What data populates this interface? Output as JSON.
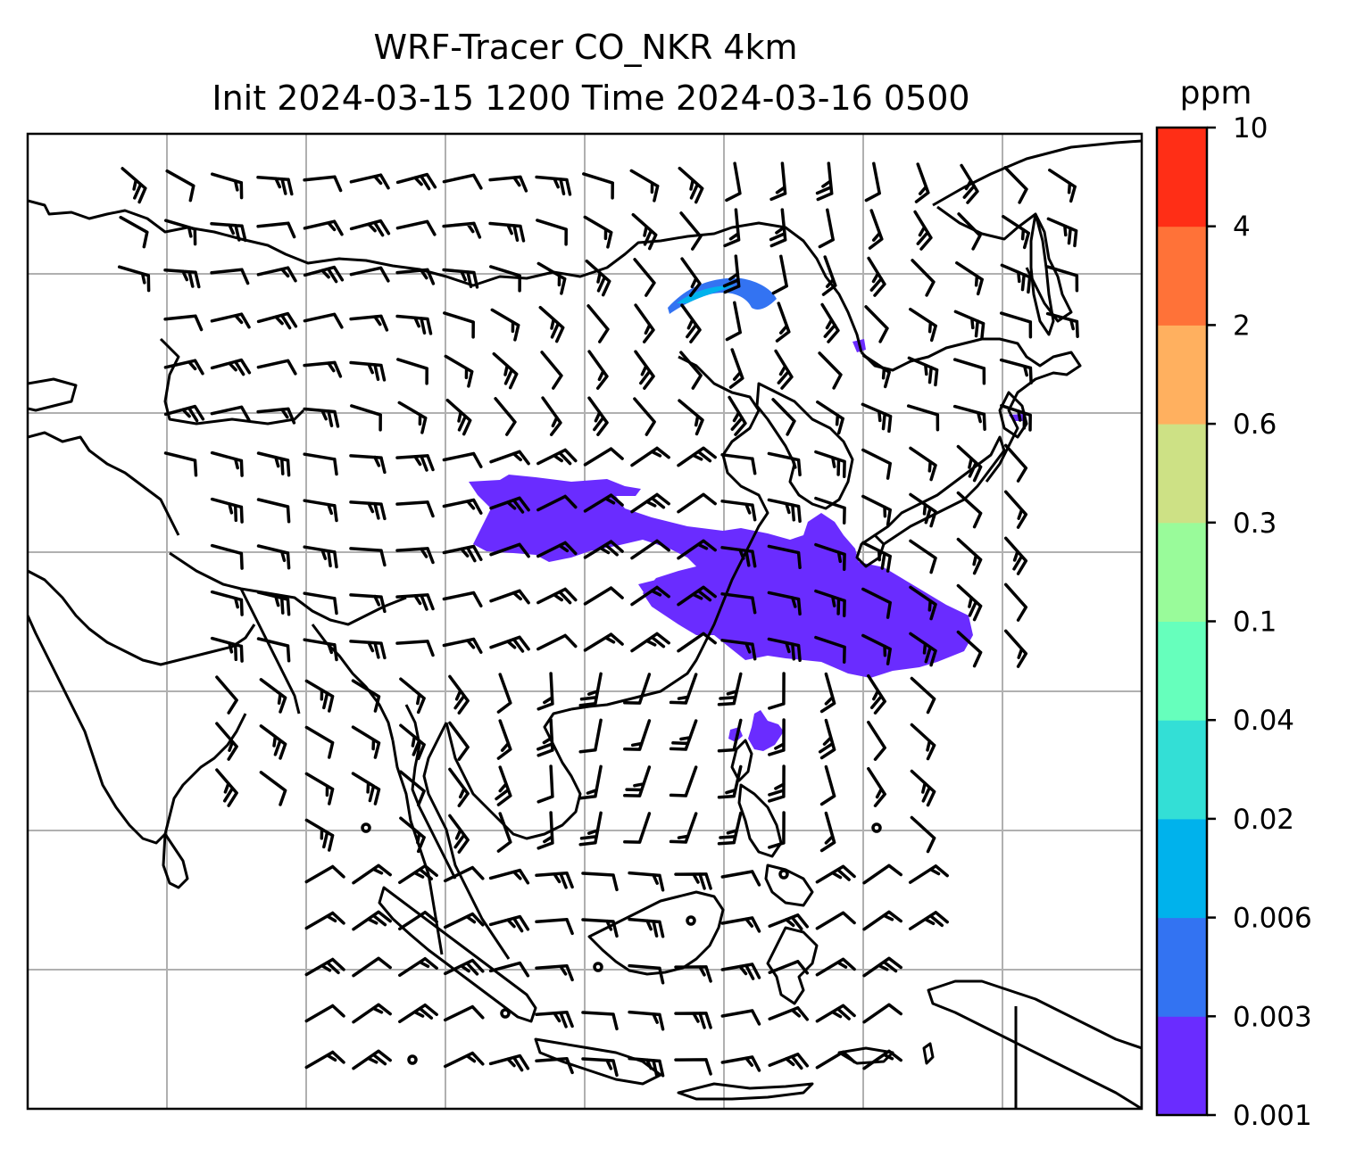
{
  "chart_data": {
    "type": "heatmap",
    "title_line1": "WRF-Tracer CO_NKR 4km",
    "title_line2": "Init 2024-03-15 1200 Time 2024-03-16 0500",
    "colorbar": {
      "unit": "ppm",
      "levels": [
        "0.001",
        "0.003",
        "0.006",
        "0.02",
        "0.04",
        "0.1",
        "0.3",
        "0.6",
        "2",
        "4",
        "10"
      ],
      "colors": [
        "#6a2cff",
        "#3373f2",
        "#00b2ec",
        "#33dfd6",
        "#66ffbc",
        "#99fb9a",
        "#cde185",
        "#ffb05f",
        "#ff7238",
        "#ff2e16"
      ]
    },
    "map_features": {
      "gridlines": true,
      "coastlines": true,
      "wind_barbs": true
    },
    "colors": {
      "plume": "#6a2cff",
      "plume_edge": "#3373f2",
      "coast": "#000000",
      "grid": "#b0b0b0"
    }
  }
}
